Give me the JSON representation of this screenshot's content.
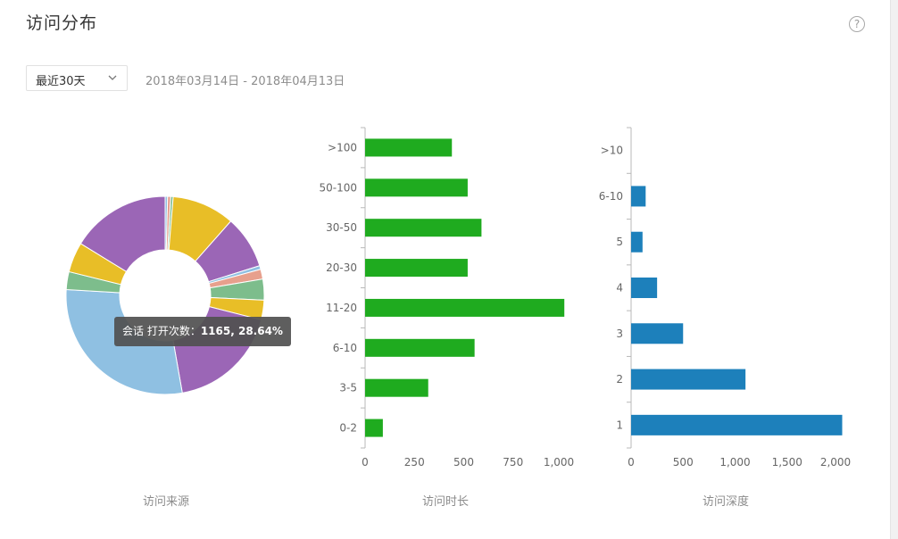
{
  "header": {
    "title": "访问分布",
    "help_icon": "?"
  },
  "filter": {
    "range_label": "最近30天",
    "date_range": "2018年03月14日 - 2018年04月13日"
  },
  "tooltip": {
    "prefix": "会话 打开次数：",
    "value": "1165, 28.64%"
  },
  "chart_data": [
    {
      "type": "pie",
      "title": "访问来源",
      "donut": true,
      "slices": [
        {
          "value": 0.4,
          "color": "#8fc0e2"
        },
        {
          "value": 0.5,
          "color": "#e7a08d"
        },
        {
          "value": 0.4,
          "color": "#7dbd8c"
        },
        {
          "value": 10.2,
          "color": "#e8be27"
        },
        {
          "value": 8.6,
          "color": "#9b66b6"
        },
        {
          "value": 0.6,
          "color": "#8fc0e2"
        },
        {
          "value": 1.6,
          "color": "#e7a08d"
        },
        {
          "value": 3.4,
          "color": "#7dbd8c"
        },
        {
          "value": 3.2,
          "color": "#e8be27"
        },
        {
          "value": 18.2,
          "color": "#9b66b6"
        },
        {
          "value": 28.64,
          "color": "#8fc0e2"
        },
        {
          "value": 2.9,
          "color": "#7dbd8c"
        },
        {
          "value": 4.9,
          "color": "#e8be27"
        },
        {
          "value": 16.2,
          "color": "#9b66b6"
        }
      ]
    },
    {
      "type": "bar",
      "orientation": "horizontal",
      "title": "访问时长",
      "color": "#1fab1f",
      "categories": [
        "0-2",
        "3-5",
        "6-10",
        "11-20",
        "20-30",
        "30-50",
        "50-100",
        ">100"
      ],
      "values": [
        90,
        320,
        555,
        1010,
        520,
        590,
        520,
        440
      ],
      "xticks": [
        0,
        250,
        500,
        750,
        1000
      ],
      "xtick_labels": [
        "0",
        "250",
        "500",
        "750",
        "1,000"
      ],
      "xlim": [
        0,
        1000
      ]
    },
    {
      "type": "bar",
      "orientation": "horizontal",
      "title": "访问深度",
      "color": "#1d80bb",
      "categories": [
        "1",
        "2",
        "3",
        "4",
        "5",
        "6-10",
        ">10"
      ],
      "values": [
        2030,
        1100,
        500,
        250,
        110,
        140,
        0
      ],
      "xticks": [
        0,
        500,
        1000,
        1500,
        2000
      ],
      "xtick_labels": [
        "0",
        "500",
        "1,000",
        "1,500",
        "2,000"
      ],
      "xlim": [
        0,
        2000
      ]
    }
  ]
}
